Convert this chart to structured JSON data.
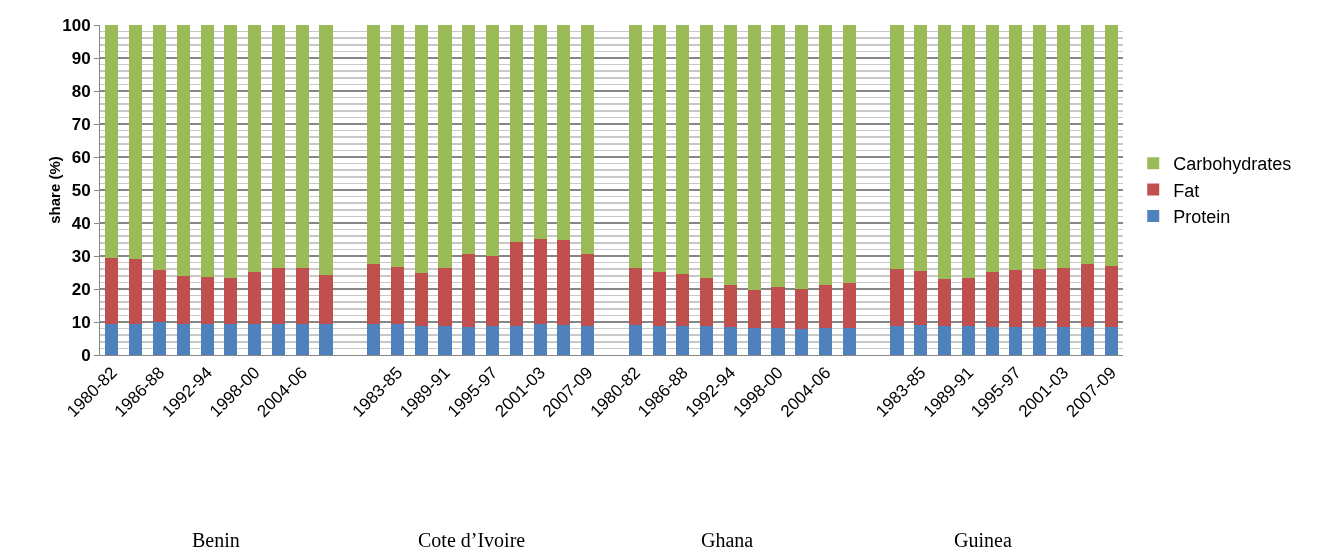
{
  "chart_data": {
    "type": "bar",
    "stacked": true,
    "ylabel": "share (%)",
    "ylim": [
      0,
      100
    ],
    "yticks": [
      0,
      10,
      20,
      30,
      40,
      50,
      60,
      70,
      80,
      90,
      100
    ],
    "grid": "y",
    "legend": "right",
    "categories": [
      "1980-82",
      null,
      "1986-88",
      null,
      "1992-94",
      null,
      "1998-00",
      null,
      "2004-06",
      null,
      null,
      null,
      "1983-85",
      null,
      "1989-91",
      null,
      "1995-97",
      null,
      "2001-03",
      null,
      "2007-09",
      null,
      "1980-82",
      null,
      "1986-88",
      null,
      "1992-94",
      null,
      "1998-00",
      null,
      "2004-06",
      null,
      null,
      null,
      "1983-85",
      null,
      "1989-91",
      null,
      "1995-97",
      null,
      "2001-03",
      null,
      "2007-09"
    ],
    "series": [
      {
        "name": "Protein",
        "color": "#4f81bd",
        "values": [
          9.5,
          9.5,
          10.0,
          9.3,
          9.5,
          9.3,
          9.5,
          9.5,
          9.3,
          9.5,
          null,
          9.5,
          9.3,
          8.7,
          8.7,
          8.6,
          8.7,
          8.9,
          9.4,
          9.1,
          8.8,
          null,
          9.1,
          8.9,
          8.8,
          8.7,
          8.4,
          8.2,
          8.3,
          8.0,
          8.1,
          8.1,
          null,
          8.9,
          9.0,
          8.8,
          8.9,
          8.6,
          8.5,
          8.6,
          8.6,
          8.5,
          8.4
        ]
      },
      {
        "name": "Fat",
        "color": "#c0504d",
        "values": [
          19.8,
          19.7,
          15.7,
          14.7,
          14.2,
          13.9,
          15.7,
          16.8,
          17.0,
          14.8,
          null,
          18.1,
          17.4,
          16.2,
          17.6,
          22.0,
          21.4,
          25.2,
          25.9,
          25.6,
          21.8,
          null,
          17.2,
          16.2,
          15.8,
          14.6,
          12.7,
          11.5,
          12.4,
          11.9,
          13.0,
          13.8,
          null,
          17.3,
          16.4,
          14.2,
          14.5,
          16.5,
          17.2,
          17.6,
          17.9,
          19.0,
          18.5
        ]
      },
      {
        "name": "Carbohydrates",
        "color": "#9bbb59",
        "values": [
          70.7,
          70.8,
          74.3,
          76.0,
          76.3,
          76.8,
          74.8,
          73.7,
          73.7,
          75.7,
          null,
          72.4,
          73.3,
          75.1,
          73.7,
          69.4,
          69.9,
          65.9,
          64.7,
          65.3,
          69.4,
          null,
          73.7,
          74.9,
          75.4,
          76.7,
          78.9,
          80.3,
          79.3,
          80.1,
          78.9,
          78.1,
          null,
          73.8,
          74.6,
          77.0,
          76.6,
          74.9,
          74.3,
          73.8,
          73.5,
          72.5,
          73.1
        ]
      }
    ],
    "annotations": [
      "Benin",
      "Cote d’Ivoire",
      "Ghana",
      "Guinea"
    ]
  }
}
